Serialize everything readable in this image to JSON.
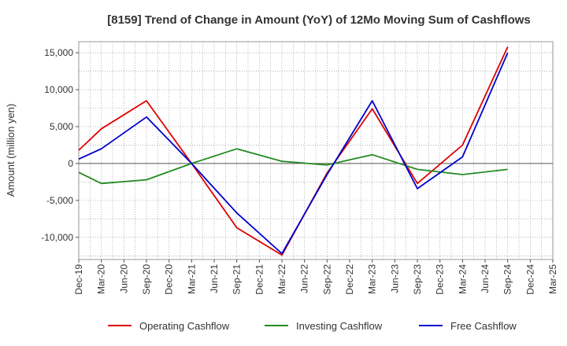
{
  "chart_data": {
    "type": "line",
    "title": "[8159]  Trend of Change in Amount (YoY) of 12Mo Moving Sum of Cashflows",
    "xlabel": "",
    "ylabel": "Amount (million yen)",
    "ylim": [
      -13000,
      16500
    ],
    "yticks": [
      15000,
      10000,
      5000,
      0,
      -5000,
      -10000
    ],
    "ytick_labels": [
      "15,000",
      "10,000",
      "5,000",
      "0",
      "-5,000",
      "-10,000"
    ],
    "categories": [
      "Dec-19",
      "Mar-20",
      "Jun-20",
      "Sep-20",
      "Dec-20",
      "Mar-21",
      "Jun-21",
      "Sep-21",
      "Dec-21",
      "Mar-22",
      "Jun-22",
      "Sep-22",
      "Dec-22",
      "Mar-23",
      "Jun-23",
      "Sep-23",
      "Dec-23",
      "Mar-24",
      "Jun-24",
      "Sep-24",
      "Dec-24",
      "Mar-25"
    ],
    "grid": true,
    "legend_position": "bottom",
    "series": [
      {
        "name": "Operating Cashflow",
        "color": "#dd0000",
        "values": [
          1800,
          4700,
          null,
          8500,
          null,
          0,
          null,
          -8700,
          null,
          -12400,
          null,
          -1300,
          null,
          7400,
          null,
          -2700,
          null,
          2500,
          null,
          15800,
          null,
          null
        ]
      },
      {
        "name": "Investing Cashflow",
        "color": "#228b22",
        "values": [
          -1200,
          -2700,
          null,
          -2200,
          null,
          0,
          null,
          2000,
          null,
          300,
          null,
          -200,
          null,
          1200,
          null,
          -800,
          null,
          -1500,
          null,
          -800,
          null,
          null
        ]
      },
      {
        "name": "Free Cashflow",
        "color": "#0000cc",
        "values": [
          600,
          2000,
          null,
          6300,
          null,
          0,
          null,
          -6700,
          null,
          -12200,
          null,
          -1500,
          null,
          8500,
          null,
          -3400,
          null,
          900,
          null,
          15000,
          null,
          null
        ]
      }
    ]
  }
}
